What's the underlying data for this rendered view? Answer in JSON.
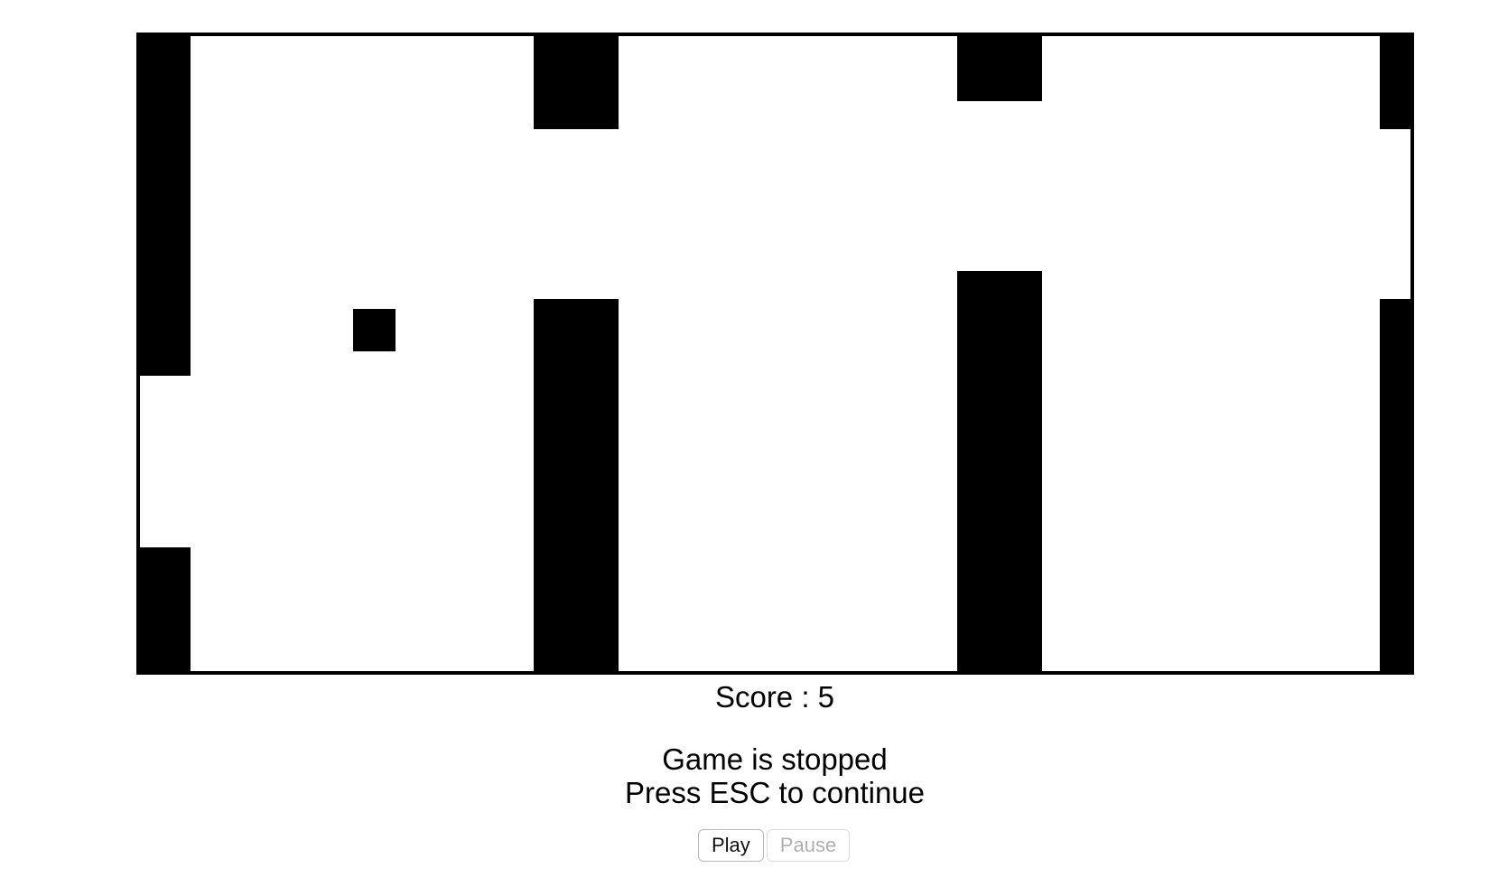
{
  "game": {
    "score_label": "Score : 5",
    "status_lines": [
      "Game is stopped",
      "Press ESC to continue"
    ],
    "colors": {
      "background": "#ffffff",
      "pipe": "#000000",
      "player": "#000000"
    }
  },
  "controls": {
    "play_label": "Play",
    "pause_label": "Pause",
    "pause_disabled": true
  }
}
